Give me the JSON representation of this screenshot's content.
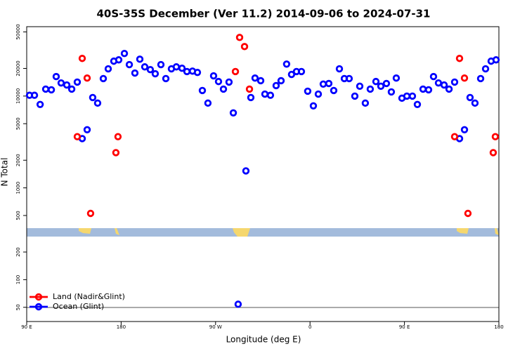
{
  "chart_data": {
    "type": "scatter",
    "title": "40S-35S December (Ver 11.2)   2014-09-06 to 2024-07-31",
    "xlabel": "Longitude (deg E)",
    "ylabel": "N Total",
    "xlim": [
      90,
      540
    ],
    "xticks": [
      {
        "value": 90,
        "label": "90 E"
      },
      {
        "value": 180,
        "label": "180"
      },
      {
        "value": 270,
        "label": "90 W"
      },
      {
        "value": 360,
        "label": "0"
      },
      {
        "value": 450,
        "label": "90 E"
      },
      {
        "value": 540,
        "label": "180"
      }
    ],
    "ylim": [
      35,
      57000
    ],
    "ylog": true,
    "yticks": [
      50,
      100,
      200,
      500,
      1000,
      2000,
      5000,
      10000,
      20000,
      50000
    ],
    "legend": "lower left",
    "series": [
      {
        "name": "Land (Nadir&Glint)",
        "color": "#ff0000",
        "x": [
          138.2,
          142.9,
          147.6,
          150.9,
          175.0,
          177.0,
          288.9,
          292.9,
          297.6,
          302.3,
          497.8,
          502.5,
          507.2,
          510.5,
          534.6,
          536.6
        ],
        "values": [
          3610,
          25700,
          15700,
          527,
          2420,
          3610,
          18500,
          43500,
          34600,
          11900,
          3610,
          25700,
          15700,
          527,
          2420,
          3610
        ]
      },
      {
        "name": "Ocean (Glint)",
        "color": "#0000ff",
        "x": [
          92.7,
          97.4,
          102.8,
          108.1,
          113.5,
          118.1,
          122.8,
          128.2,
          132.9,
          138.2,
          142.9,
          147.6,
          152.9,
          157.6,
          163.0,
          167.7,
          173.0,
          177.7,
          183.1,
          187.8,
          193.1,
          197.8,
          202.5,
          207.8,
          212.5,
          217.9,
          222.6,
          227.9,
          232.6,
          238.0,
          242.7,
          248.0,
          252.7,
          257.4,
          262.7,
          268.1,
          272.8,
          277.5,
          282.8,
          286.9,
          291.5,
          298.9,
          303.6,
          307.6,
          313.0,
          317.0,
          322.3,
          327.7,
          332.4,
          337.7,
          342.4,
          347.1,
          351.8,
          357.8,
          363.2,
          367.9,
          372.6,
          377.9,
          382.6,
          388.0,
          392.7,
          397.3,
          402.7,
          407.4,
          412.7,
          417.4,
          422.8,
          427.5,
          432.8,
          437.5,
          442.2,
          447.6,
          452.3,
          457.6,
          462.3,
          467.7,
          473.0,
          477.7,
          482.4,
          487.8,
          492.5,
          497.8,
          502.5,
          507.2,
          512.5,
          517.2,
          522.6,
          527.3,
          532.6,
          537.3
        ],
        "values": [
          10200,
          10200,
          8100,
          11900,
          11700,
          16300,
          13900,
          13200,
          11900,
          14200,
          3440,
          4300,
          9640,
          8380,
          15500,
          19800,
          24000,
          24800,
          29100,
          22000,
          17800,
          25200,
          20800,
          19400,
          17500,
          22000,
          15500,
          19800,
          20800,
          20100,
          18500,
          18700,
          18100,
          11500,
          8380,
          16600,
          14400,
          11900,
          14200,
          6560,
          54,
          1530,
          9640,
          15700,
          14700,
          10500,
          10200,
          13000,
          14700,
          22300,
          17200,
          18500,
          18500,
          11300,
          7820,
          10500,
          13500,
          13700,
          11500,
          19800,
          15500,
          15500,
          9980,
          12800,
          8380,
          11900,
          14400,
          12800,
          13700,
          11100,
          15700,
          9480,
          9980,
          9980,
          8100,
          11900,
          11700,
          16300,
          13900,
          13200,
          11900,
          14200,
          3440,
          4300,
          9640,
          8380,
          15500,
          19800,
          24000,
          24800
        ]
      }
    ]
  }
}
